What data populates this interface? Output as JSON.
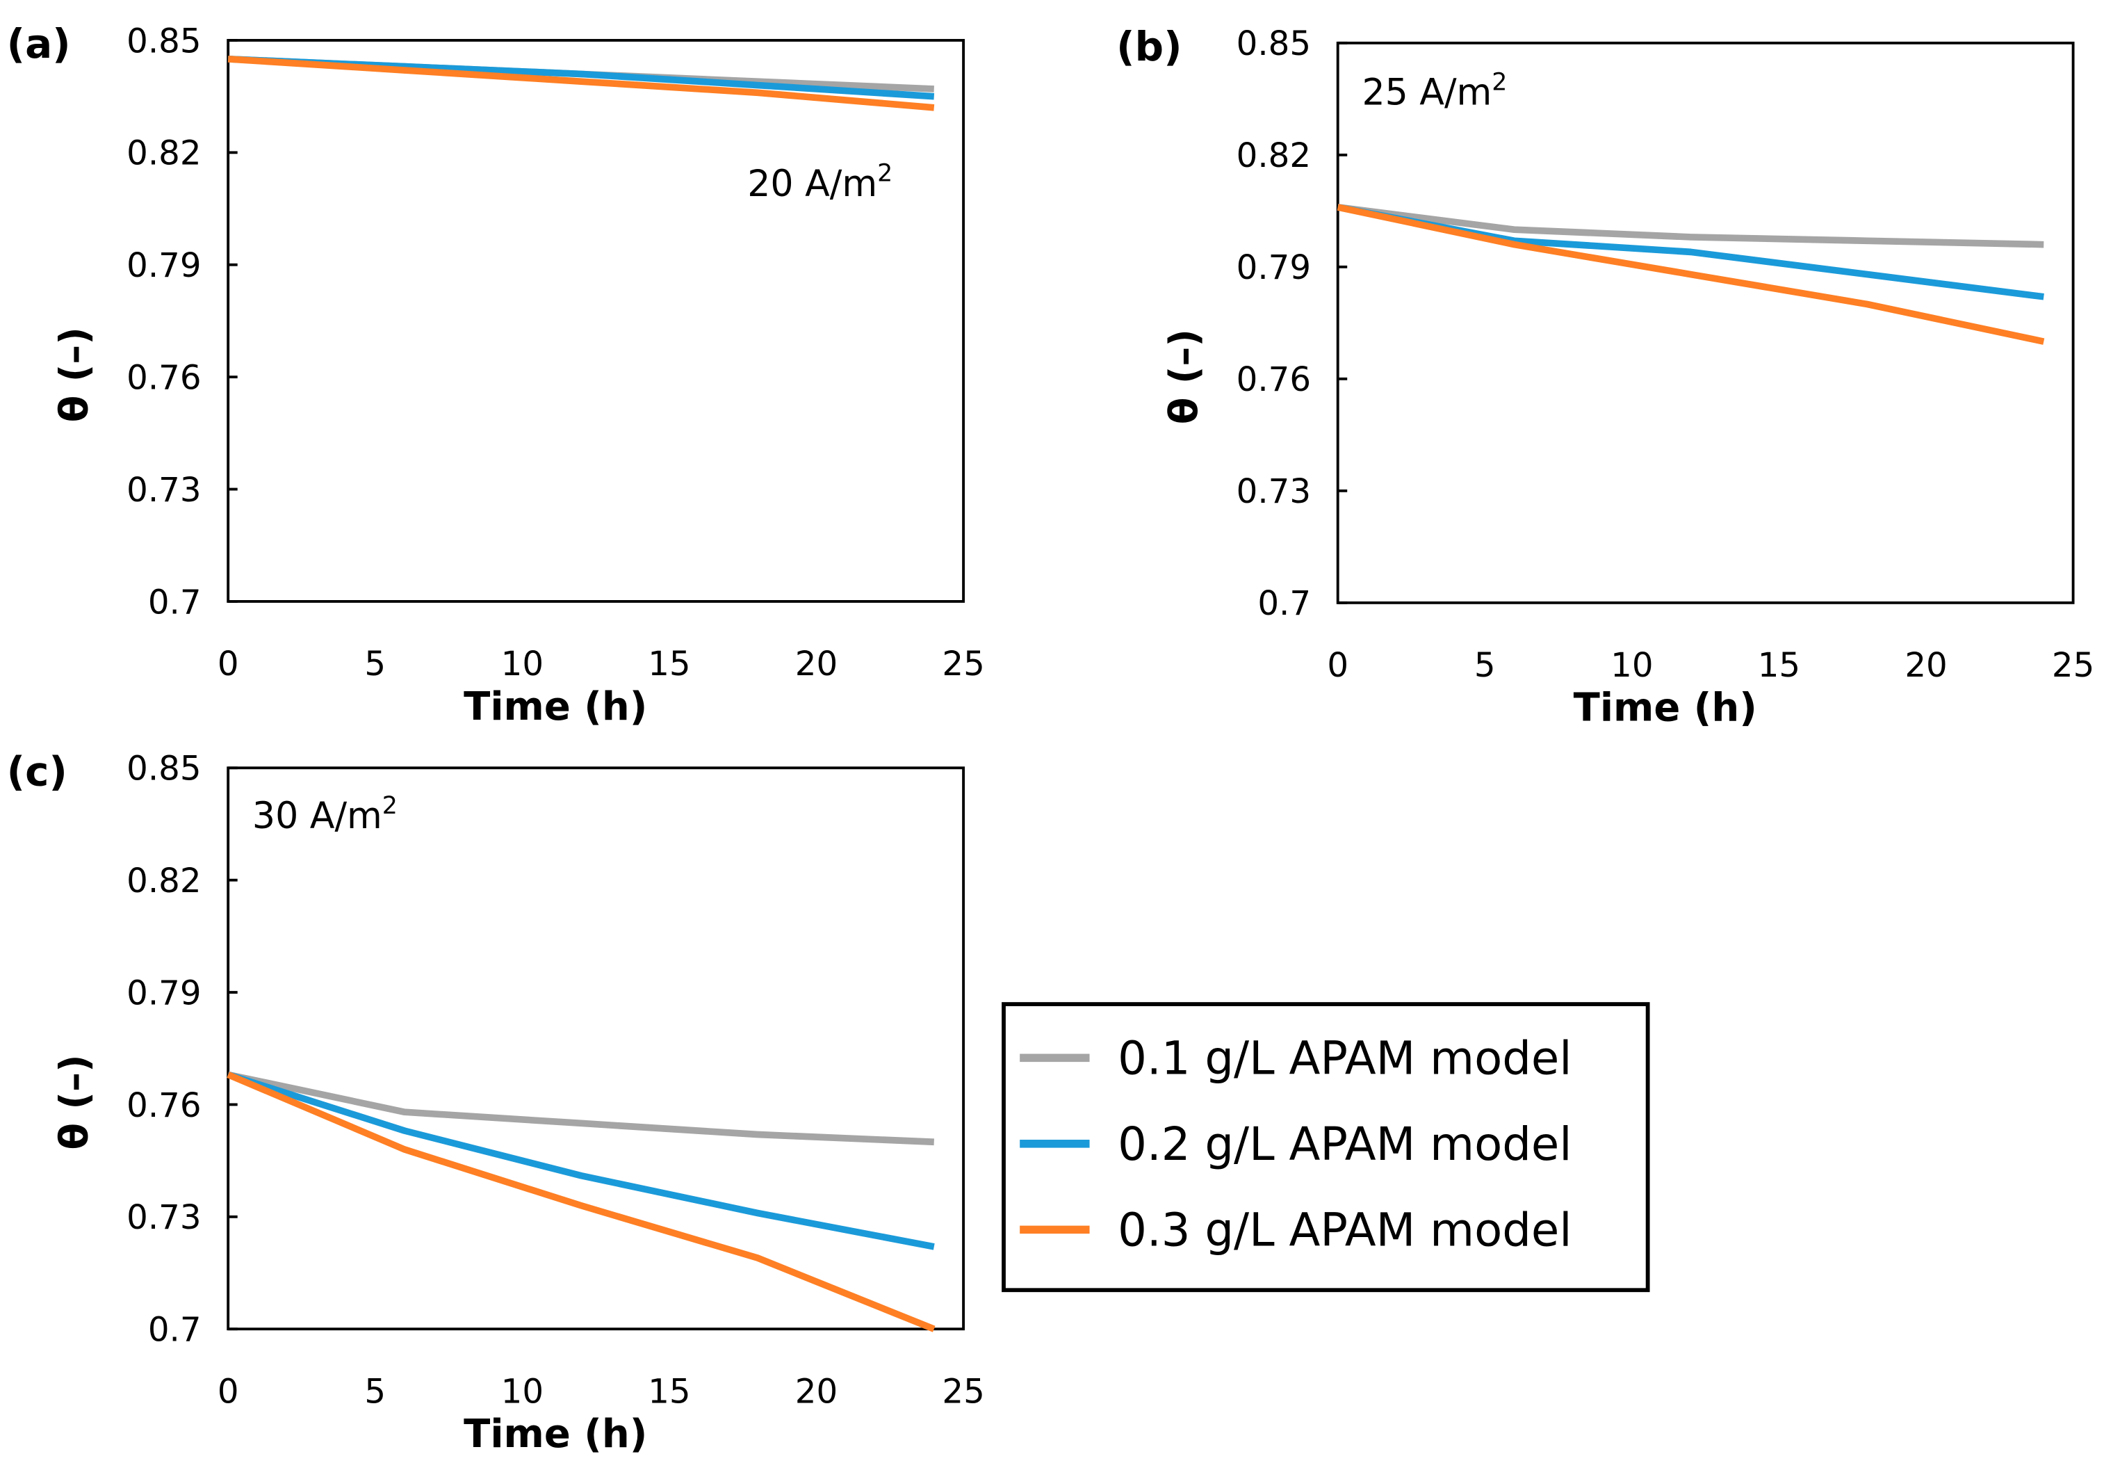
{
  "chart_data": [
    {
      "type": "line",
      "panel_label": "(a)",
      "annotation": "20 A/m",
      "annotation_sup": "2",
      "xlabel": "Time (h)",
      "ylabel": "θ (–)",
      "xlim": [
        0,
        25
      ],
      "ylim": [
        0.7,
        0.85
      ],
      "xticks": [
        "0",
        "5",
        "10",
        "15",
        "20",
        "25"
      ],
      "yticks": [
        "0.7",
        "0.73",
        "0.76",
        "0.79",
        "0.82",
        "0.85"
      ],
      "x": [
        0,
        6,
        12,
        18,
        24
      ],
      "series": [
        {
          "name": "0.1 g/L APAM model",
          "values": [
            0.845,
            0.843,
            0.841,
            0.839,
            0.837
          ]
        },
        {
          "name": "0.2 g/L APAM model",
          "values": [
            0.845,
            0.843,
            0.841,
            0.838,
            0.835
          ]
        },
        {
          "name": "0.3 g/L APAM model",
          "values": [
            0.845,
            0.842,
            0.839,
            0.836,
            0.832
          ]
        }
      ]
    },
    {
      "type": "line",
      "panel_label": "(b)",
      "annotation": "25 A/m",
      "annotation_sup": "2",
      "xlabel": "Time (h)",
      "ylabel": "θ (–)",
      "xlim": [
        0,
        25
      ],
      "ylim": [
        0.7,
        0.85
      ],
      "xticks": [
        "0",
        "5",
        "10",
        "15",
        "20",
        "25"
      ],
      "yticks": [
        "0.7",
        "0.73",
        "0.76",
        "0.79",
        "0.82",
        "0.85"
      ],
      "x": [
        0,
        6,
        12,
        18,
        24
      ],
      "series": [
        {
          "name": "0.1 g/L APAM model",
          "values": [
            0.806,
            0.8,
            0.798,
            0.797,
            0.796
          ]
        },
        {
          "name": "0.2 g/L APAM model",
          "values": [
            0.806,
            0.797,
            0.794,
            0.788,
            0.782
          ]
        },
        {
          "name": "0.3 g/L APAM model",
          "values": [
            0.806,
            0.796,
            0.788,
            0.78,
            0.77
          ]
        }
      ]
    },
    {
      "type": "line",
      "panel_label": "(c)",
      "annotation": "30 A/m",
      "annotation_sup": "2",
      "xlabel": "Time (h)",
      "ylabel": "θ (–)",
      "xlim": [
        0,
        25
      ],
      "ylim": [
        0.7,
        0.85
      ],
      "xticks": [
        "0",
        "5",
        "10",
        "15",
        "20",
        "25"
      ],
      "yticks": [
        "0.7",
        "0.73",
        "0.76",
        "0.79",
        "0.82",
        "0.85"
      ],
      "x": [
        0,
        6,
        12,
        18,
        24
      ],
      "series": [
        {
          "name": "0.1 g/L APAM model",
          "values": [
            0.768,
            0.758,
            0.755,
            0.752,
            0.75
          ]
        },
        {
          "name": "0.2 g/L APAM model",
          "values": [
            0.768,
            0.753,
            0.741,
            0.731,
            0.722
          ]
        },
        {
          "name": "0.3 g/L APAM model",
          "values": [
            0.768,
            0.748,
            0.733,
            0.719,
            0.7
          ]
        }
      ]
    }
  ],
  "legend": {
    "placement": "bottom-right",
    "entries": [
      "0.1 g/L APAM model",
      "0.2 g/L APAM model",
      "0.3 g/L APAM model"
    ]
  },
  "colors": [
    "#a5a5a5",
    "#1b9ad9",
    "#fe7f24"
  ]
}
